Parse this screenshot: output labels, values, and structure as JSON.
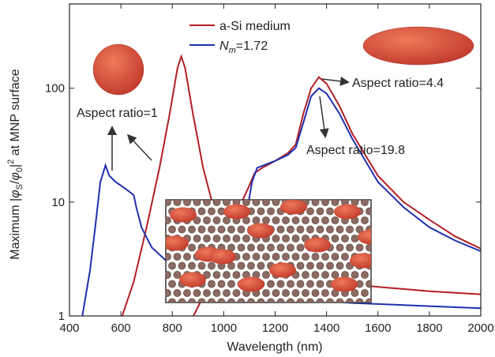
{
  "chart_data": {
    "type": "line",
    "x_label": "Wavelength (nm)",
    "y_label": [
      "Maximum |",
      "φ",
      "S",
      "/",
      "φ",
      "0",
      "|",
      "2",
      " at MNP surface"
    ],
    "xlim": [
      400,
      2000
    ],
    "xticks": [
      400,
      600,
      800,
      1000,
      1200,
      1400,
      1600,
      1800,
      2000
    ],
    "ylim": [
      1,
      550
    ],
    "yticks": [
      1,
      10,
      100
    ],
    "log_y": true,
    "legend": "top",
    "series": [
      {
        "name": "a-Si medium",
        "color": "#b21f24",
        "curves": [
          {
            "x": [
              605,
              650,
              700,
              750,
              790,
              820,
              835,
              850,
              880,
              920,
              960,
              1000,
              1100,
              1200,
              1400,
              1600,
              1800,
              2000
            ],
            "values": [
              1,
              2,
              6,
              20,
              60,
              150,
              190,
              150,
              60,
              20,
              9,
              5,
              3,
              2.5,
              2,
              1.8,
              1.65,
              1.55
            ]
          },
          {
            "x": [
              882,
              950,
              1000,
              1050,
              1100,
              1120,
              1150,
              1200,
              1250,
              1280,
              1310,
              1340,
              1370,
              1400,
              1450,
              1500,
              1600,
              1700,
              1800,
              1900,
              2000
            ],
            "values": [
              1,
              2,
              4,
              8,
              14,
              18,
              20,
              23,
              27,
              32,
              60,
              100,
              125,
              110,
              70,
              40,
              17,
              10,
              7,
              5,
              3.9
            ]
          }
        ]
      },
      {
        "name": [
          "N",
          "m",
          "=1.72"
        ],
        "color": "#1f2fb0",
        "curves": [
          {
            "x": [
              450,
              480,
              500,
              520,
              540,
              555,
              580,
              620,
              650,
              660,
              680,
              720,
              780,
              850,
              950,
              1100,
              1300,
              1500,
              1800,
              2000
            ],
            "values": [
              1,
              2.5,
              6,
              15,
              21,
              17,
              15,
              13,
              11.5,
              9,
              6,
              4,
              3,
              2.4,
              2,
              1.6,
              1.4,
              1.3,
              1.22,
              1.17
            ]
          },
          {
            "x": [
              1080,
              1110,
              1130,
              1200,
              1250,
              1280,
              1310,
              1340,
              1370,
              1400,
              1450,
              1500,
              1600,
              1700,
              1800,
              1900,
              2000
            ],
            "values": [
              6,
              15,
              20,
              23,
              26,
              30,
              50,
              85,
              100,
              90,
              60,
              36,
              15,
              9,
              6,
              4.6,
              3.7
            ]
          }
        ]
      }
    ],
    "annotations": [
      "Aspect ratio=1",
      "Aspect ratio=4.4",
      "Aspect ratio=19.8"
    ]
  }
}
